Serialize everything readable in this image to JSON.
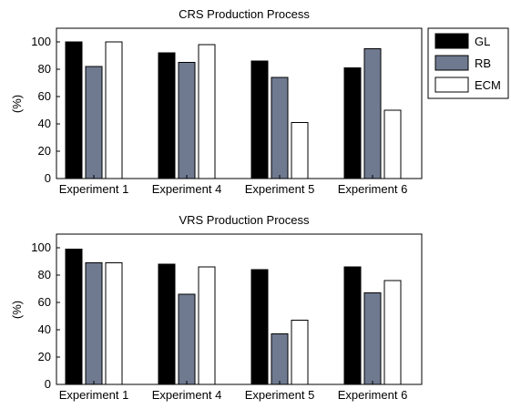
{
  "legend": {
    "entries": [
      {
        "label": "GL",
        "color": "#000000"
      },
      {
        "label": "RB",
        "color": "#6f7a90"
      },
      {
        "label": "ECM",
        "color": "#ffffff"
      }
    ]
  },
  "chart_data": [
    {
      "type": "bar",
      "title": "CRS Production Process",
      "xlabel": "",
      "ylabel": "(%)",
      "categories": [
        "Experiment 1",
        "Experiment 4",
        "Experiment 5",
        "Experiment 6"
      ],
      "ylim": [
        0,
        110
      ],
      "yticks": [
        0,
        20,
        40,
        60,
        80,
        100
      ],
      "grid": false,
      "legend_position": "outside-right",
      "series": [
        {
          "name": "GL",
          "color": "#000000",
          "values": [
            100,
            92,
            86,
            81
          ]
        },
        {
          "name": "RB",
          "color": "#6f7a90",
          "values": [
            82,
            85,
            74,
            95
          ]
        },
        {
          "name": "ECM",
          "color": "#ffffff",
          "values": [
            100,
            98,
            41,
            50
          ]
        }
      ]
    },
    {
      "type": "bar",
      "title": "VRS Production Process",
      "xlabel": "",
      "ylabel": "(%)",
      "categories": [
        "Experiment 1",
        "Experiment 4",
        "Experiment 5",
        "Experiment 6"
      ],
      "ylim": [
        0,
        110
      ],
      "yticks": [
        0,
        20,
        40,
        60,
        80,
        100
      ],
      "grid": false,
      "legend_position": "none",
      "series": [
        {
          "name": "GL",
          "color": "#000000",
          "values": [
            99,
            88,
            84,
            86
          ]
        },
        {
          "name": "RB",
          "color": "#6f7a90",
          "values": [
            89,
            66,
            37,
            67
          ]
        },
        {
          "name": "ECM",
          "color": "#ffffff",
          "values": [
            89,
            86,
            47,
            76
          ]
        }
      ]
    }
  ]
}
